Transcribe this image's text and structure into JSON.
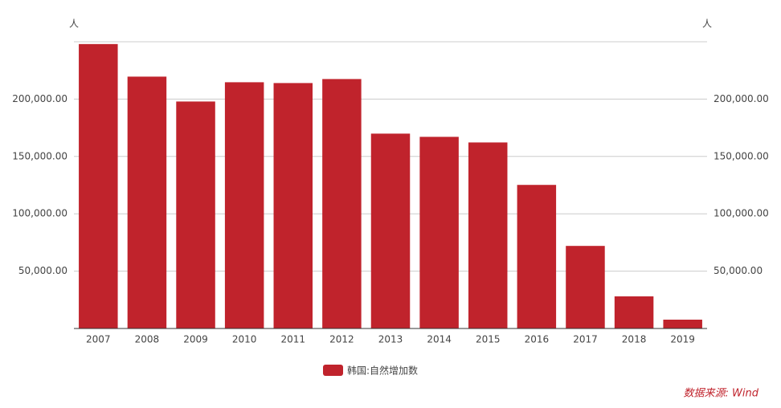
{
  "chart_data": {
    "type": "bar",
    "y_unit": "人",
    "y2_unit": "人",
    "categories": [
      "2007",
      "2008",
      "2009",
      "2010",
      "2011",
      "2012",
      "2013",
      "2014",
      "2015",
      "2016",
      "2017",
      "2018",
      "2019"
    ],
    "series": [
      {
        "name": "韩国:自然增加数",
        "color": "#c0232c",
        "values": [
          248000,
          219600,
          197900,
          214700,
          214000,
          217500,
          169900,
          167100,
          162200,
          125200,
          72000,
          28000,
          7700
        ]
      }
    ],
    "ylim": [
      0,
      250000
    ],
    "yticks": [
      {
        "value": 50000,
        "label": "50,000.00"
      },
      {
        "value": 100000,
        "label": "100,000.00"
      },
      {
        "value": 150000,
        "label": "150,000.00"
      },
      {
        "value": 200000,
        "label": "200,000.00"
      }
    ],
    "y2lim": [
      0,
      250000
    ],
    "y2ticks": [
      {
        "value": 50000,
        "label": "50,000.00"
      },
      {
        "value": 100000,
        "label": "100,000.00"
      },
      {
        "value": 150000,
        "label": "150,000.00"
      },
      {
        "value": 200000,
        "label": "200,000.00"
      }
    ],
    "grid": true,
    "source": "数据来源: Wind"
  }
}
